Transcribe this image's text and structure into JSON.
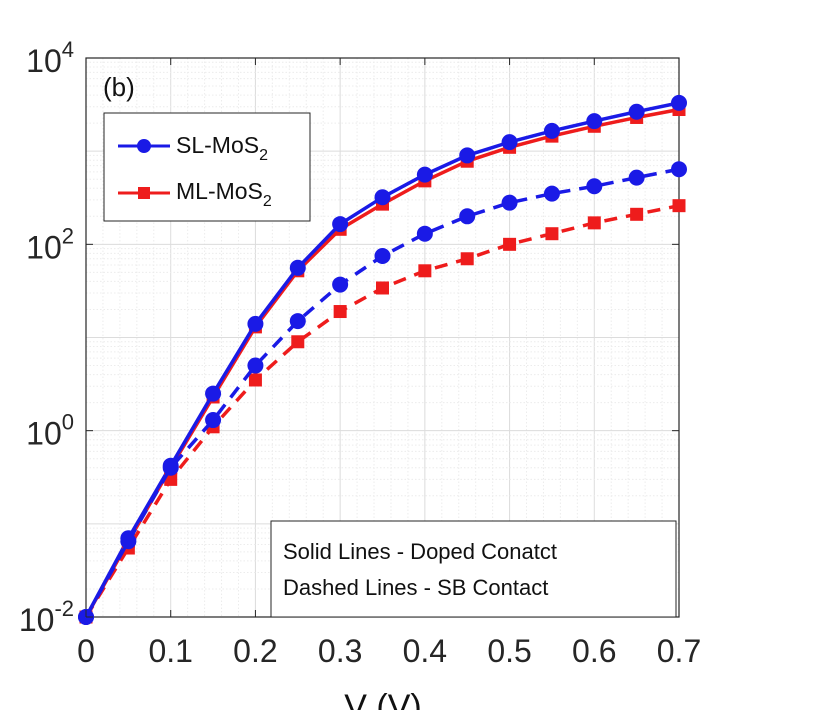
{
  "chart_data": {
    "type": "line",
    "panel_label": "(b)",
    "y_scale": "log",
    "xlim": [
      0,
      0.7
    ],
    "ylim": [
      0.01,
      10000
    ],
    "grid": "on (major and minor)",
    "x_tick_labels": [
      "0",
      "0.1",
      "0.2",
      "0.3",
      "0.4",
      "0.5",
      "0.6",
      "0.7"
    ],
    "y_tick_labels": [
      {
        "base": "10",
        "exp": "-2"
      },
      {
        "base": "10",
        "exp": "0"
      },
      {
        "base": "10",
        "exp": "2"
      },
      {
        "base": "10",
        "exp": "4"
      }
    ],
    "xlabel": "V   (V)",
    "legend": {
      "position": "top-left",
      "entries": [
        {
          "prefix": "SL-MoS",
          "sub": "2"
        },
        {
          "prefix": "ML-MoS",
          "sub": "2"
        }
      ]
    },
    "note": [
      "Solid Lines - Doped Conatct",
      "Dashed Lines - SB Contact"
    ],
    "x": [
      0,
      0.05,
      0.1,
      0.15,
      0.2,
      0.25,
      0.3,
      0.35,
      0.4,
      0.45,
      0.5,
      0.55,
      0.6,
      0.65,
      0.7
    ],
    "series": [
      {
        "color": "#ee1c1c",
        "marker": "square",
        "line": "solid",
        "values": [
          0.01,
          0.065,
          0.4,
          2.3,
          13,
          52,
          145,
          270,
          480,
          780,
          1100,
          1450,
          1850,
          2300,
          2800
        ]
      },
      {
        "color": "#1a1ae6",
        "marker": "circle",
        "line": "solid",
        "values": [
          0.01,
          0.07,
          0.42,
          2.5,
          14,
          56,
          165,
          320,
          560,
          900,
          1250,
          1650,
          2100,
          2650,
          3300
        ]
      },
      {
        "color": "#ee1c1c",
        "marker": "square",
        "line": "dashed",
        "values": [
          0.01,
          0.055,
          0.3,
          1.1,
          3.5,
          9,
          19,
          34,
          52,
          70,
          100,
          130,
          170,
          210,
          260
        ]
      },
      {
        "color": "#1a1ae6",
        "marker": "circle",
        "line": "dashed",
        "values": [
          0.01,
          0.065,
          0.4,
          1.3,
          5,
          15,
          37,
          75,
          130,
          200,
          280,
          350,
          420,
          520,
          640
        ]
      }
    ]
  }
}
